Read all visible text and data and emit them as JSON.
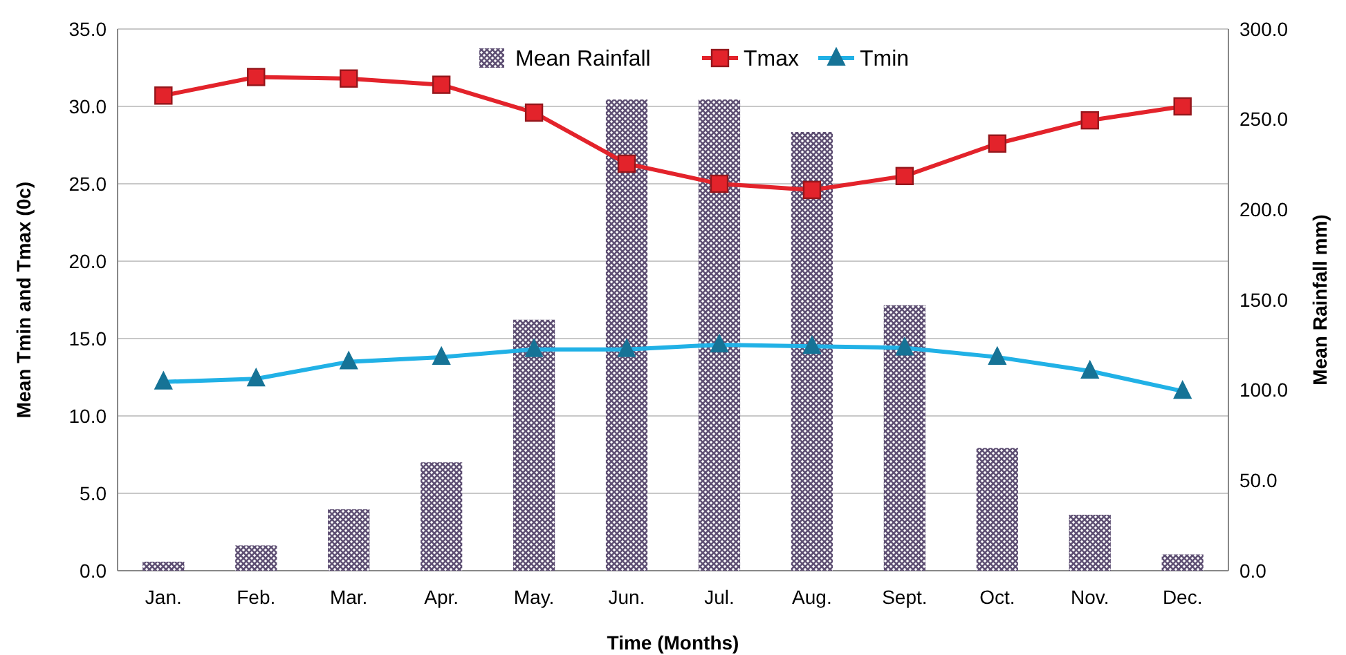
{
  "chart_data": {
    "type": "line",
    "xlabel": "Time (Months)",
    "ylabel": "Mean Tmin and Tmax (0c)",
    "y2label": "Mean Rainfall mm)",
    "categories": [
      "Jan.",
      "Feb.",
      "Mar.",
      "Apr.",
      "May.",
      "Jun.",
      "Jul.",
      "Aug.",
      "Sept.",
      "Oct.",
      "Nov.",
      "Dec."
    ],
    "series": [
      {
        "name": "Mean Rainfall",
        "type": "bar",
        "axis": "y2",
        "color": "#5e4f73",
        "values": [
          5,
          14,
          34,
          60,
          139,
          261,
          261,
          243,
          147,
          68,
          31,
          9
        ]
      },
      {
        "name": "Tmax",
        "color": "#e3232b",
        "marker": "square",
        "values": [
          30.7,
          31.9,
          31.8,
          31.4,
          29.6,
          26.3,
          25.0,
          24.6,
          25.5,
          27.6,
          29.1,
          30.0
        ]
      },
      {
        "name": "Tmin",
        "color": "#21b1e6",
        "marker": "triangle",
        "values": [
          12.2,
          12.4,
          13.5,
          13.8,
          14.3,
          14.3,
          14.6,
          14.5,
          14.4,
          13.8,
          12.9,
          11.6
        ]
      }
    ],
    "ylim": [
      0,
      35
    ],
    "yticks": [
      {
        "value": 0,
        "label": "0.0"
      },
      {
        "value": 5,
        "label": "5.0"
      },
      {
        "value": 10,
        "label": "10.0"
      },
      {
        "value": 15,
        "label": "15.0"
      },
      {
        "value": 20,
        "label": "20.0"
      },
      {
        "value": 25,
        "label": "25.0"
      },
      {
        "value": 30,
        "label": "30.0"
      },
      {
        "value": 35,
        "label": "35.0"
      }
    ],
    "y2lim": [
      0,
      300
    ],
    "y2ticks": [
      {
        "value": 0,
        "label": "0.0"
      },
      {
        "value": 50,
        "label": "50.0"
      },
      {
        "value": 100,
        "label": "100.0"
      },
      {
        "value": 150,
        "label": "150.0"
      },
      {
        "value": 200,
        "label": "200.0"
      },
      {
        "value": 250,
        "label": "250.0"
      },
      {
        "value": 300,
        "label": "300.0"
      }
    ],
    "grid": "y",
    "legend": "top"
  }
}
